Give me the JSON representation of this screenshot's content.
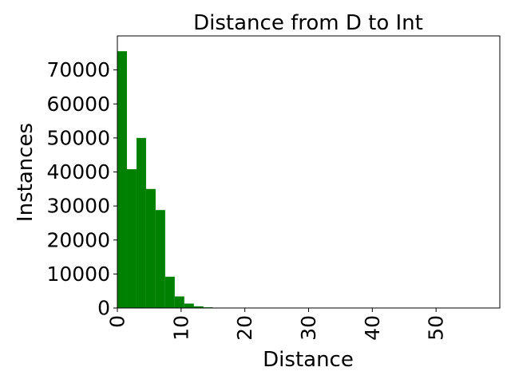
{
  "chart_data": {
    "type": "bar",
    "title": "Distance from D to Int",
    "xlabel": "Distance",
    "ylabel": "Instances",
    "xlim": [
      0,
      60
    ],
    "ylim": [
      0,
      80000
    ],
    "xticks": [
      0,
      10,
      20,
      30,
      40,
      50
    ],
    "yticks": [
      0,
      10000,
      20000,
      30000,
      40000,
      50000,
      60000,
      70000
    ],
    "bin_width": 1.5,
    "bins": [
      {
        "x0": 0.0,
        "x1": 1.5,
        "value": 75500
      },
      {
        "x0": 1.5,
        "x1": 3.0,
        "value": 40800
      },
      {
        "x0": 3.0,
        "x1": 4.5,
        "value": 50000
      },
      {
        "x0": 4.5,
        "x1": 6.0,
        "value": 35000
      },
      {
        "x0": 6.0,
        "x1": 7.5,
        "value": 28800
      },
      {
        "x0": 7.5,
        "x1": 9.0,
        "value": 9200
      },
      {
        "x0": 9.0,
        "x1": 10.5,
        "value": 3400
      },
      {
        "x0": 10.5,
        "x1": 12.0,
        "value": 1300
      },
      {
        "x0": 12.0,
        "x1": 13.5,
        "value": 500
      },
      {
        "x0": 13.5,
        "x1": 15.0,
        "value": 200
      },
      {
        "x0": 15.0,
        "x1": 16.5,
        "value": 80
      },
      {
        "x0": 16.5,
        "x1": 18.0,
        "value": 40
      },
      {
        "x0": 18.0,
        "x1": 19.5,
        "value": 20
      }
    ],
    "bar_color": "#008000",
    "grid": false,
    "legend": "none"
  }
}
